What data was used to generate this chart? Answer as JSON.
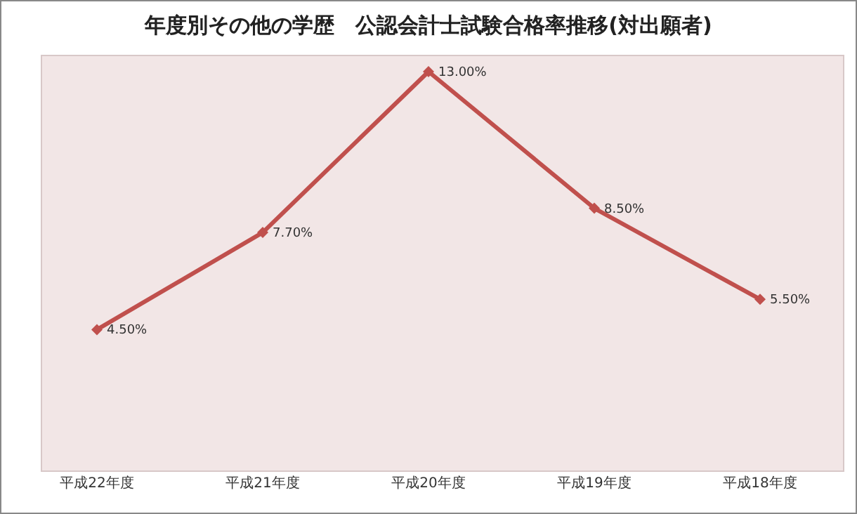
{
  "chart_data": {
    "type": "line",
    "title": "年度別その他の学歴　公認会計士試験合格率推移(対出願者)",
    "categories": [
      "平成22年度",
      "平成21年度",
      "平成20年度",
      "平成19年度",
      "平成18年度"
    ],
    "series": [
      {
        "color": "#c0504d",
        "values": [
          4.5,
          7.7,
          13.0,
          8.5,
          5.5
        ],
        "value_labels": [
          "4.50%",
          "7.70%",
          "13.00%",
          "8.50%",
          "5.50%"
        ]
      }
    ],
    "marker": "diamond",
    "legend": false,
    "tick_labels": "x"
  }
}
